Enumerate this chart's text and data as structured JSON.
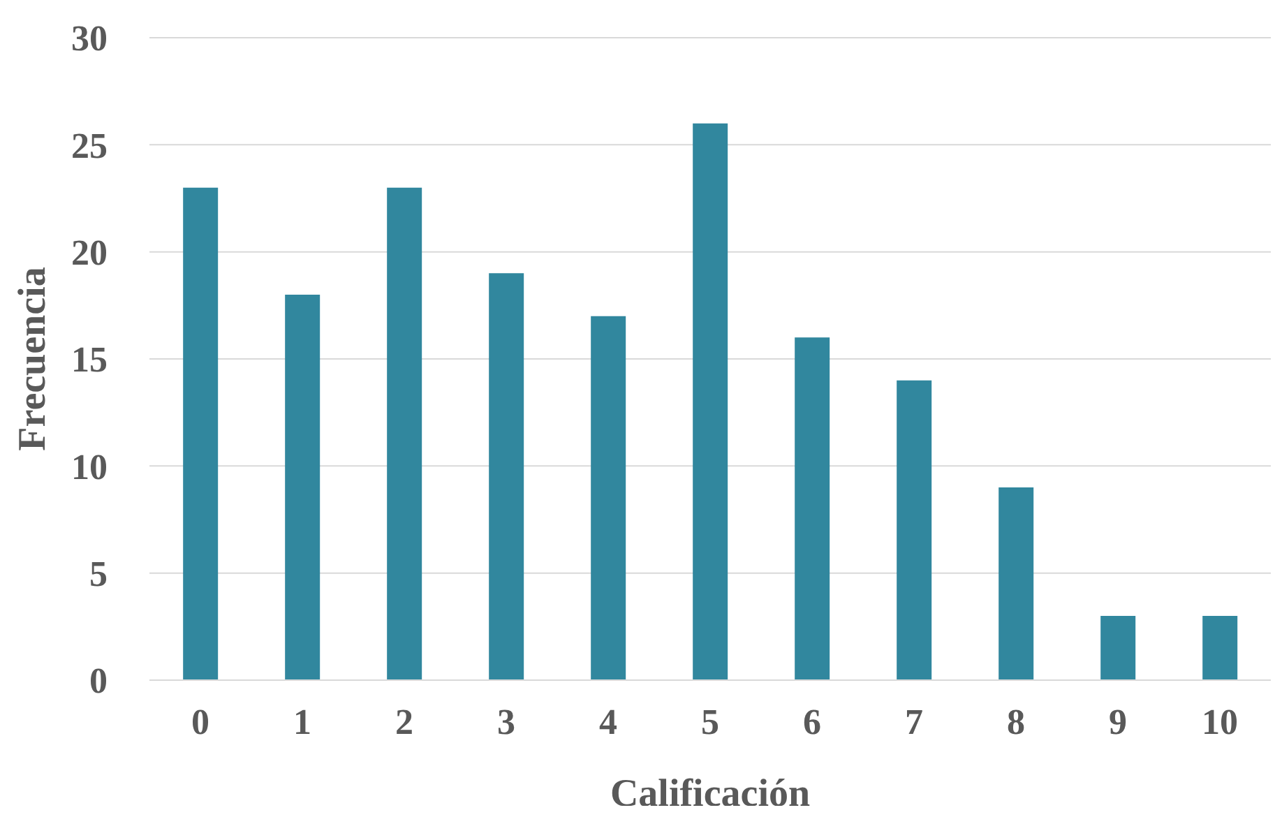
{
  "chart_data": {
    "type": "bar",
    "xlabel": "Calificación",
    "ylabel": "Frecuencia",
    "categories": [
      "0",
      "1",
      "2",
      "3",
      "4",
      "5",
      "6",
      "7",
      "8",
      "9",
      "10"
    ],
    "values": [
      23,
      18,
      23,
      19,
      17,
      26,
      16,
      14,
      9,
      3,
      3
    ],
    "color": "#31879e",
    "ylim": [
      0,
      30
    ],
    "yticks": [
      0,
      5,
      10,
      15,
      20,
      25,
      30
    ],
    "grid": "y",
    "legend": false
  }
}
